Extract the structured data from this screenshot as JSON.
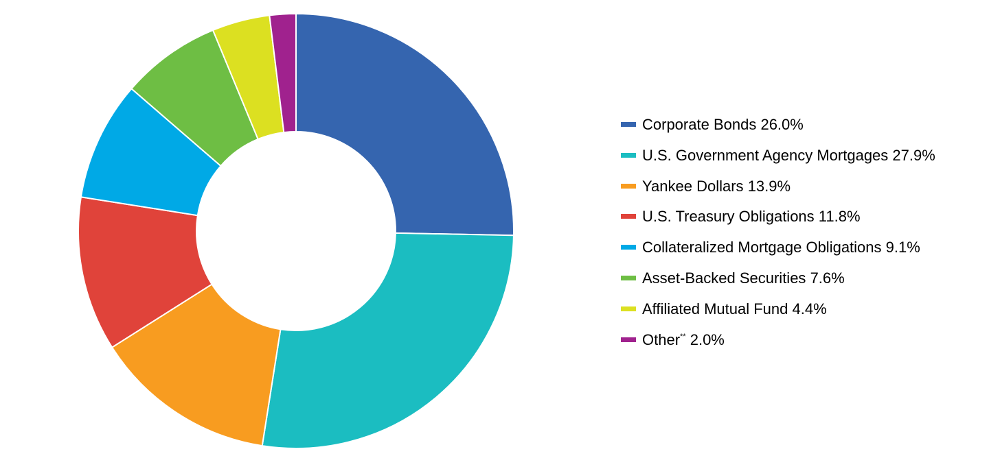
{
  "chart_data": {
    "type": "pie",
    "donut": true,
    "title": "",
    "legend_position": "right",
    "series": [
      {
        "label": "Corporate Bonds",
        "marker": "",
        "value": 26.0,
        "display": "26.0%",
        "color": "#3565AF"
      },
      {
        "label": "U.S. Government Agency Mortgages",
        "marker": "",
        "value": 27.9,
        "display": "27.9%",
        "color": "#1BBDC1"
      },
      {
        "label": "Yankee Dollars",
        "marker": "",
        "value": 13.9,
        "display": "13.9%",
        "color": "#F89C20"
      },
      {
        "label": "U.S. Treasury Obligations",
        "marker": "",
        "value": 11.8,
        "display": "11.8%",
        "color": "#E0433A"
      },
      {
        "label": "Collateralized Mortgage Obligations",
        "marker": "",
        "value": 9.1,
        "display": "9.1%",
        "color": "#00A9E6"
      },
      {
        "label": "Asset-Backed Securities",
        "marker": "",
        "value": 7.6,
        "display": "7.6%",
        "color": "#6EBE44"
      },
      {
        "label": "Affiliated Mutual Fund",
        "marker": "",
        "value": 4.4,
        "display": "4.4%",
        "color": "#DCE021"
      },
      {
        "label": "Other",
        "marker": "**",
        "value": 2.0,
        "display": "2.0%",
        "color": "#A0228E"
      }
    ]
  }
}
